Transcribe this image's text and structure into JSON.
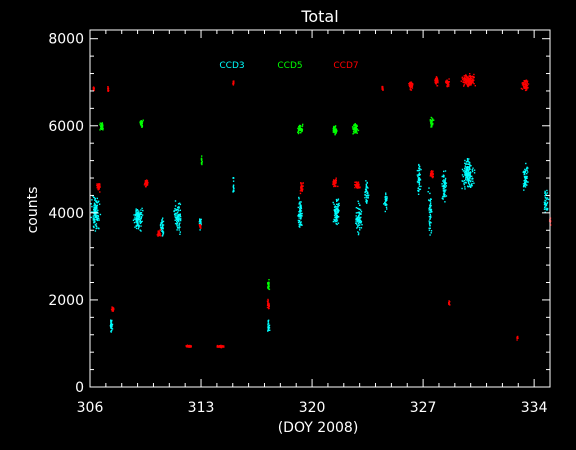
{
  "chart_data": {
    "type": "scatter",
    "title": "Total",
    "xlabel": "(DOY 2008)",
    "ylabel": "counts",
    "xlim": [
      306,
      335
    ],
    "ylim": [
      0,
      8200
    ],
    "xticks": [
      306,
      313,
      320,
      327,
      334
    ],
    "yticks": [
      0,
      2000,
      4000,
      6000,
      8000
    ],
    "x_tick_labels": [
      "306",
      "313",
      "320",
      "327",
      "334"
    ],
    "y_tick_labels": [
      "0",
      "2000",
      "4000",
      "6000",
      "8000"
    ],
    "grid": false,
    "legend_position": "top-center",
    "series": [
      {
        "name": "CCD3",
        "color": "#00ffff",
        "clusters": [
          {
            "x": 306.3,
            "y": 4000,
            "dx": 0.35,
            "dy": 500,
            "n": 120
          },
          {
            "x": 307.3,
            "y": 1450,
            "dx": 0.1,
            "dy": 180,
            "n": 25
          },
          {
            "x": 309.0,
            "y": 3900,
            "dx": 0.35,
            "dy": 350,
            "n": 120
          },
          {
            "x": 310.5,
            "y": 3700,
            "dx": 0.15,
            "dy": 300,
            "n": 40
          },
          {
            "x": 311.5,
            "y": 3900,
            "dx": 0.3,
            "dy": 450,
            "n": 90
          },
          {
            "x": 312.9,
            "y": 3750,
            "dx": 0.1,
            "dy": 250,
            "n": 20
          },
          {
            "x": 315.0,
            "y": 4600,
            "dx": 0.05,
            "dy": 300,
            "n": 15
          },
          {
            "x": 317.2,
            "y": 1400,
            "dx": 0.1,
            "dy": 200,
            "n": 25
          },
          {
            "x": 319.2,
            "y": 4000,
            "dx": 0.2,
            "dy": 500,
            "n": 70
          },
          {
            "x": 321.5,
            "y": 4000,
            "dx": 0.25,
            "dy": 450,
            "n": 80
          },
          {
            "x": 322.9,
            "y": 3900,
            "dx": 0.25,
            "dy": 450,
            "n": 80
          },
          {
            "x": 323.4,
            "y": 4500,
            "dx": 0.15,
            "dy": 400,
            "n": 40
          },
          {
            "x": 324.6,
            "y": 4300,
            "dx": 0.15,
            "dy": 300,
            "n": 30
          },
          {
            "x": 326.7,
            "y": 4800,
            "dx": 0.15,
            "dy": 550,
            "n": 50
          },
          {
            "x": 327.4,
            "y": 4000,
            "dx": 0.15,
            "dy": 800,
            "n": 50
          },
          {
            "x": 328.3,
            "y": 4600,
            "dx": 0.2,
            "dy": 500,
            "n": 60
          },
          {
            "x": 329.8,
            "y": 4900,
            "dx": 0.5,
            "dy": 450,
            "n": 160
          },
          {
            "x": 333.4,
            "y": 4900,
            "dx": 0.2,
            "dy": 450,
            "n": 60
          },
          {
            "x": 334.7,
            "y": 4300,
            "dx": 0.2,
            "dy": 400,
            "n": 40
          }
        ]
      },
      {
        "name": "CCD5",
        "color": "#00ff00",
        "clusters": [
          {
            "x": 306.7,
            "y": 6000,
            "dx": 0.15,
            "dy": 150,
            "n": 35
          },
          {
            "x": 309.2,
            "y": 6050,
            "dx": 0.15,
            "dy": 150,
            "n": 35
          },
          {
            "x": 313.0,
            "y": 5200,
            "dx": 0.05,
            "dy": 150,
            "n": 12
          },
          {
            "x": 317.2,
            "y": 2350,
            "dx": 0.1,
            "dy": 150,
            "n": 25
          },
          {
            "x": 319.2,
            "y": 5950,
            "dx": 0.2,
            "dy": 150,
            "n": 45
          },
          {
            "x": 321.4,
            "y": 5900,
            "dx": 0.2,
            "dy": 150,
            "n": 45
          },
          {
            "x": 322.7,
            "y": 5950,
            "dx": 0.25,
            "dy": 150,
            "n": 50
          },
          {
            "x": 327.5,
            "y": 6100,
            "dx": 0.15,
            "dy": 150,
            "n": 30
          }
        ]
      },
      {
        "name": "CCD7",
        "color": "#ff0000",
        "clusters": [
          {
            "x": 306.2,
            "y": 6850,
            "dx": 0.05,
            "dy": 100,
            "n": 15
          },
          {
            "x": 306.5,
            "y": 4600,
            "dx": 0.15,
            "dy": 150,
            "n": 35
          },
          {
            "x": 307.1,
            "y": 6850,
            "dx": 0.05,
            "dy": 100,
            "n": 10
          },
          {
            "x": 307.4,
            "y": 1800,
            "dx": 0.1,
            "dy": 80,
            "n": 20
          },
          {
            "x": 309.5,
            "y": 4700,
            "dx": 0.15,
            "dy": 120,
            "n": 35
          },
          {
            "x": 310.3,
            "y": 3550,
            "dx": 0.15,
            "dy": 100,
            "n": 25
          },
          {
            "x": 312.2,
            "y": 950,
            "dx": 0.25,
            "dy": 40,
            "n": 40
          },
          {
            "x": 312.9,
            "y": 3700,
            "dx": 0.1,
            "dy": 80,
            "n": 15
          },
          {
            "x": 314.2,
            "y": 950,
            "dx": 0.35,
            "dy": 40,
            "n": 55
          },
          {
            "x": 315.0,
            "y": 7000,
            "dx": 0.05,
            "dy": 100,
            "n": 12
          },
          {
            "x": 317.2,
            "y": 1900,
            "dx": 0.1,
            "dy": 150,
            "n": 25
          },
          {
            "x": 319.3,
            "y": 4600,
            "dx": 0.15,
            "dy": 180,
            "n": 35
          },
          {
            "x": 321.4,
            "y": 4700,
            "dx": 0.2,
            "dy": 130,
            "n": 40
          },
          {
            "x": 322.8,
            "y": 4650,
            "dx": 0.25,
            "dy": 130,
            "n": 45
          },
          {
            "x": 324.4,
            "y": 6900,
            "dx": 0.05,
            "dy": 150,
            "n": 12
          },
          {
            "x": 326.2,
            "y": 6950,
            "dx": 0.2,
            "dy": 150,
            "n": 40
          },
          {
            "x": 327.5,
            "y": 4900,
            "dx": 0.15,
            "dy": 150,
            "n": 30
          },
          {
            "x": 327.8,
            "y": 7050,
            "dx": 0.15,
            "dy": 150,
            "n": 35
          },
          {
            "x": 328.5,
            "y": 7000,
            "dx": 0.2,
            "dy": 150,
            "n": 35
          },
          {
            "x": 328.6,
            "y": 1950,
            "dx": 0.05,
            "dy": 80,
            "n": 10
          },
          {
            "x": 329.8,
            "y": 7050,
            "dx": 0.5,
            "dy": 180,
            "n": 150
          },
          {
            "x": 332.9,
            "y": 1150,
            "dx": 0.05,
            "dy": 60,
            "n": 10
          },
          {
            "x": 333.4,
            "y": 6950,
            "dx": 0.3,
            "dy": 180,
            "n": 60
          },
          {
            "x": 335.0,
            "y": 3800,
            "dx": 0.1,
            "dy": 150,
            "n": 20
          }
        ]
      }
    ]
  }
}
